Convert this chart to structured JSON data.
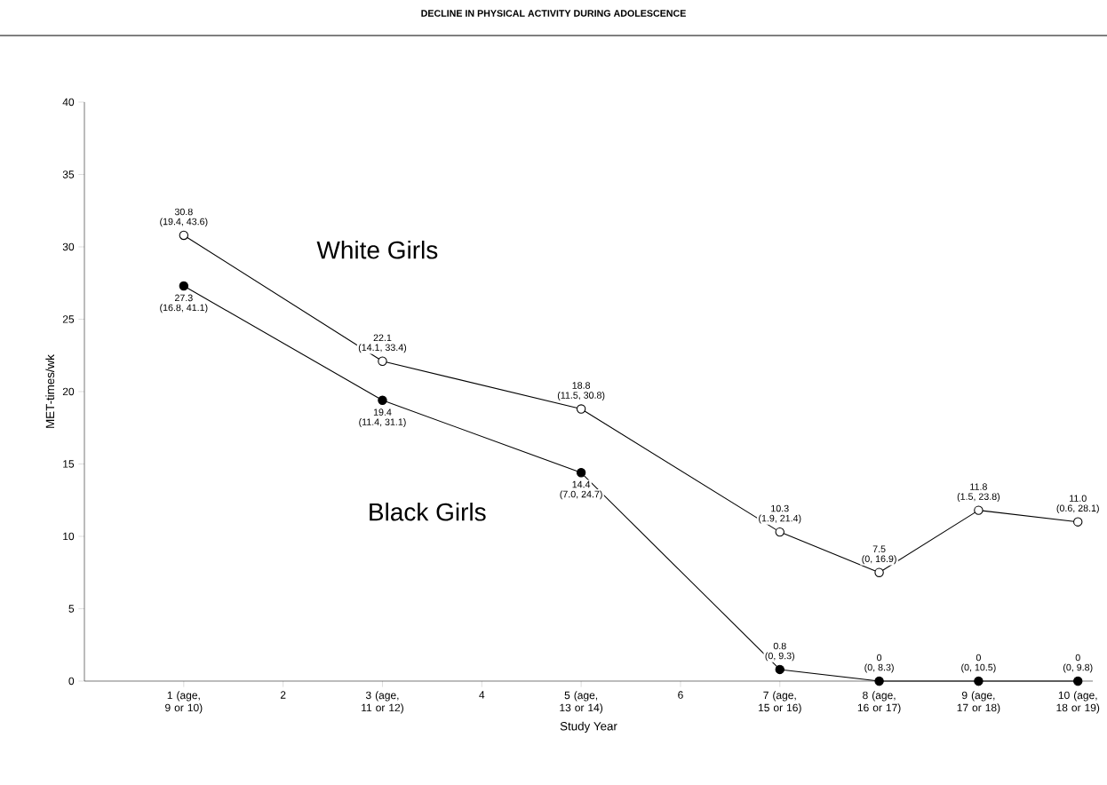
{
  "chart_data": {
    "type": "line",
    "title": "DECLINE IN PHYSICAL ACTIVITY DURING ADOLESCENCE",
    "xlabel": "Study Year",
    "ylabel": "MET-times/wk",
    "x": [
      1,
      3,
      5,
      7,
      8,
      9,
      10
    ],
    "xlim": [
      0,
      10.15
    ],
    "ylim": [
      0,
      40
    ],
    "xticks": [
      {
        "value": 1,
        "label": "1 (age, 9 or 10)"
      },
      2,
      {
        "value": 3,
        "label": "3 (age, 11 or 12)"
      },
      4,
      {
        "value": 5,
        "label": "5 (age, 13 or 14)"
      },
      6,
      {
        "value": 7,
        "label": "7 (age, 15 or 16)"
      },
      {
        "value": 8,
        "label": "8 (age, 16 or 17)"
      },
      {
        "value": 9,
        "label": "9 (age, 17 or 18)"
      },
      {
        "value": 10,
        "label": "10 (age, 18 or 19)"
      }
    ],
    "yticks": [
      0,
      5,
      10,
      15,
      20,
      25,
      30,
      35,
      40
    ],
    "marker": "circle",
    "line_style": "solid",
    "series": [
      {
        "name": "White Girls",
        "color": "#000000",
        "values": [
          30.8,
          22.1,
          18.8,
          10.3,
          7.5,
          11.8,
          11.0
        ],
        "value_labels": [
          "30.8",
          "22.1",
          "18.8",
          "10.3",
          "7.5",
          "11.8",
          "11.0"
        ]
      },
      {
        "name": "Black Girls",
        "color": "#000000",
        "values": [
          27.3,
          19.4,
          14.4,
          0.8,
          0,
          0,
          0
        ],
        "value_labels": [
          "27.3",
          "19.4",
          "14.4",
          "0.8",
          "0",
          "0",
          "0"
        ]
      }
    ],
    "annotations": [
      {
        "text": "(19.4, 43.6)",
        "x": 1,
        "y": 30.8
      },
      {
        "text": "(14.1, 33.4)",
        "x": 3,
        "y": 22.1
      },
      {
        "text": "(11.5, 30.8)",
        "x": 5,
        "y": 18.8
      },
      {
        "text": "(1.9, 21.4)",
        "x": 7,
        "y": 10.3
      },
      {
        "text": "(0, 16.9)",
        "x": 8,
        "y": 7.5
      },
      {
        "text": "(1.5, 23.8)",
        "x": 9,
        "y": 11.8
      },
      {
        "text": "(0.6, 28.1)",
        "x": 10,
        "y": 11.0
      },
      {
        "text": "(16.8, 41.1)",
        "x": 1,
        "y": 27.3
      },
      {
        "text": "(11.4, 31.1)",
        "x": 3,
        "y": 19.4
      },
      {
        "text": "(7.0, 24.7)",
        "x": 5,
        "y": 14.4
      },
      {
        "text": "(0, 9.3)",
        "x": 7,
        "y": 0.8
      },
      {
        "text": "(0, 8.3)",
        "x": 8,
        "y": 0
      },
      {
        "text": "(0, 10.5)",
        "x": 9,
        "y": 0
      },
      {
        "text": "(0, 9.8)",
        "x": 10,
        "y": 0
      }
    ]
  }
}
